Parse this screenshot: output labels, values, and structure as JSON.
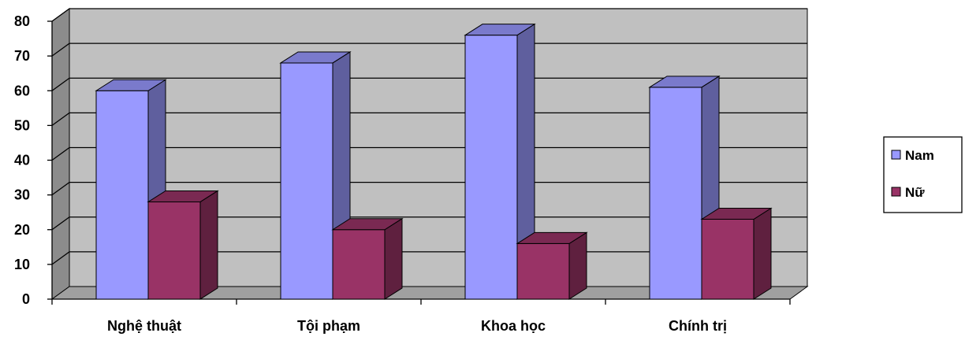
{
  "chart_data": {
    "type": "bar",
    "style": "3d-clustered-column",
    "categories": [
      "Nghệ thuật",
      "Tội phạm",
      "Khoa học",
      "Chính trị"
    ],
    "series": [
      {
        "name": "Nam",
        "values": [
          60,
          68,
          76,
          61
        ],
        "color": "#9999ff"
      },
      {
        "name": "Nữ",
        "values": [
          28,
          20,
          16,
          23
        ],
        "color": "#993366"
      }
    ],
    "ylim": [
      0,
      80
    ],
    "yticks": [
      "0",
      "10",
      "20",
      "30",
      "40",
      "50",
      "60",
      "70",
      "80"
    ],
    "grid": true,
    "legend_position": "right",
    "wall_color": "#c0c0c0",
    "floor_color": "#a0a0a0"
  }
}
